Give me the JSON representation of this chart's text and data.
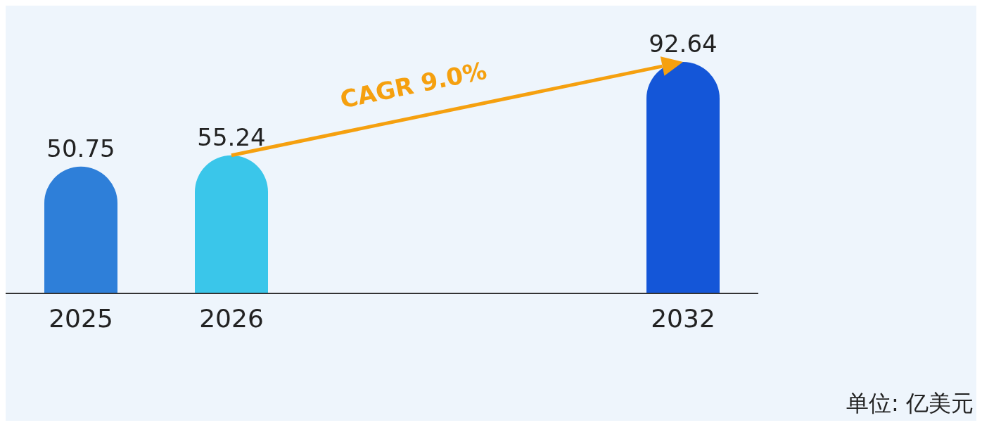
{
  "chart_data": {
    "type": "bar",
    "categories": [
      "2025",
      "2026",
      null,
      null,
      "2032"
    ],
    "values": [
      50.75,
      55.24,
      null,
      null,
      92.64
    ],
    "colors": [
      "#2e7fd9",
      "#3ac6ea",
      null,
      null,
      "#1456d8"
    ],
    "data_labels": true,
    "annotations": [
      "CAGR 9.0%",
      "单位: 亿美元"
    ]
  }
}
